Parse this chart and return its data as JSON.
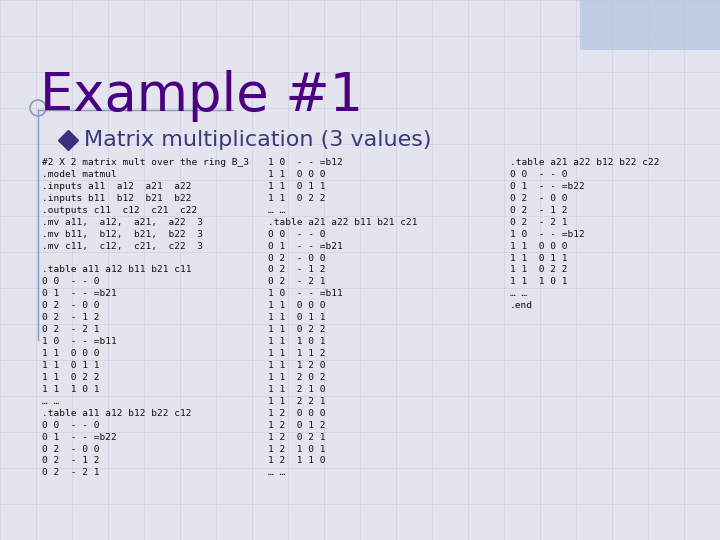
{
  "title": "Example #1",
  "subtitle": "Matrix multiplication (3 values)",
  "bg_color": "#e4e4ef",
  "grid_color": "#c0c8dc",
  "title_color": "#4B0082",
  "subtitle_color": "#3a3a7a",
  "code_color": "#111111",
  "col1": "#2 X 2 matrix mult over the ring B_3\n.model matmul\n.inputs a11  a12  a21  a22\n.inputs b11  b12  b21  b22\n.outputs c11  c12  c21  c22\n.mv a11,  a12,  a21,  a22  3\n.mv b11,  b12,  b21,  b22  3\n.mv c11,  c12,  c21,  c22  3\n\n.table a11 a12 b11 b21 c11\n0 0  - - 0\n0 1  - - =b21\n0 2  - 0 0\n0 2  - 1 2\n0 2  - 2 1\n1 0  - - =b11\n1 1  0 0 0\n1 1  0 1 1\n1 1  0 2 2\n1 1  1 0 1\n… …\n.table a11 a12 b12 b22 c12\n0 0  - - 0\n0 1  - - =b22\n0 2  - 0 0\n0 2  - 1 2\n0 2  - 2 1",
  "col2": "1 0  - - =b12\n1 1  0 0 0\n1 1  0 1 1\n1 1  0 2 2\n… …\n.table a21 a22 b11 b21 c21\n0 0  - - 0\n0 1  - - =b21\n0 2  - 0 0\n0 2  - 1 2\n0 2  - 2 1\n1 0  - - =b11\n1 1  0 0 0\n1 1  0 1 1\n1 1  0 2 2\n1 1  1 0 1\n1 1  1 1 2\n1 1  1 2 0\n1 1  2 0 2\n1 1  2 1 0\n1 1  2 2 1\n1 2  0 0 0\n1 2  0 1 2\n1 2  0 2 1\n1 2  1 0 1\n1 2  1 1 0\n… …",
  "col3": ".table a21 a22 b12 b22 c22\n0 0  - - 0\n0 1  - - =b22\n0 2  - 0 0\n0 2  - 1 2\n0 2  - 2 1\n1 0  - - =b12\n1 1  0 0 0\n1 1  0 1 1\n1 1  0 2 2\n1 1  1 0 1\n… …\n.end"
}
